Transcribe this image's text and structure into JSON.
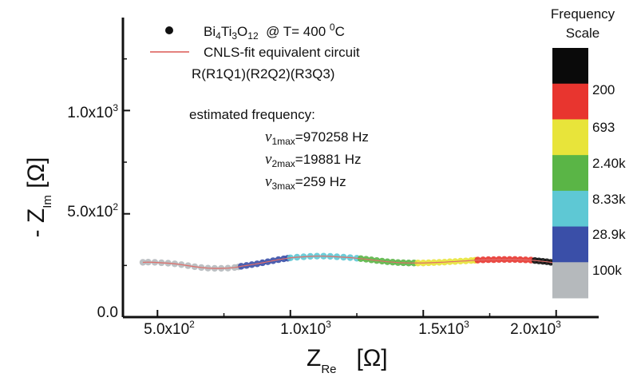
{
  "chart_data": {
    "type": "scatter",
    "xlabel_main": "Z",
    "xlabel_sub": "Re",
    "xlabel_unit": "[Ω]",
    "ylabel_main": "- Z",
    "ylabel_sub": "Im",
    "ylabel_unit": "[Ω]",
    "xlim": [
      370,
      2160
    ],
    "ylim": [
      0,
      1450
    ],
    "x_ticks": [
      {
        "value": 500,
        "mantissa": "5.0x10",
        "exp": "2"
      },
      {
        "value": 1000,
        "mantissa": "1.0x10",
        "exp": "3"
      },
      {
        "value": 1500,
        "mantissa": "1.5x10",
        "exp": "3"
      },
      {
        "value": 2000,
        "mantissa": "2.0x10",
        "exp": "3"
      }
    ],
    "y_ticks": [
      {
        "value": 0,
        "mantissa": "0.0",
        "exp": ""
      },
      {
        "value": 500,
        "mantissa": "5.0x10",
        "exp": "2"
      },
      {
        "value": 1000,
        "mantissa": "1.0x10",
        "exp": "3"
      }
    ],
    "legend": {
      "points": {
        "pre": "Bi",
        "s1": "4",
        "mid1": "Ti",
        "s2": "3",
        "mid2": "O",
        "s3": "12",
        "post": "  @ T= 400 ",
        "sup": "0",
        "post2": "C"
      },
      "fit": "CNLS-fit equivalent circuit",
      "circuit": "R(R1Q1)(R2Q2)(R3Q3)"
    },
    "annotation": {
      "title": "estimated frequency:",
      "rows": [
        {
          "symbol": "ν",
          "sub": "1max",
          "value": "=970258 Hz"
        },
        {
          "symbol": "ν",
          "sub": "2max",
          "value": "=19881 Hz"
        },
        {
          "symbol": "ν",
          "sub": "3max",
          "value": "=259 Hz"
        }
      ]
    },
    "fit_line_color": "#e0706c",
    "segments": [
      {
        "color": "#b5b9bc",
        "x": [
          445,
          465,
          490,
          515,
          540,
          565,
          590,
          615,
          640,
          665,
          690,
          715,
          740,
          765,
          790,
          805
        ],
        "y": [
          265,
          266,
          265,
          263,
          261,
          258,
          254,
          249,
          244,
          240,
          237,
          236,
          236,
          237,
          240,
          243
        ]
      },
      {
        "color": "#3a4fa8",
        "x": [
          815,
          835,
          855,
          875,
          895,
          915,
          935,
          955,
          975,
          990
        ],
        "y": [
          246,
          250,
          254,
          258,
          263,
          268,
          273,
          278,
          282,
          285
        ]
      },
      {
        "color": "#5ec8d4",
        "x": [
          1000,
          1025,
          1050,
          1075,
          1100,
          1125,
          1150,
          1175,
          1200,
          1225,
          1250
        ],
        "y": [
          287,
          290,
          292,
          294,
          295,
          295,
          294,
          292,
          290,
          288,
          285
        ]
      },
      {
        "color": "#5ab546",
        "x": [
          1265,
          1285,
          1305,
          1325,
          1345,
          1365,
          1385,
          1405,
          1425,
          1445,
          1465
        ],
        "y": [
          283,
          280,
          277,
          274,
          271,
          268,
          266,
          264,
          263,
          262,
          262
        ]
      },
      {
        "color": "#e8e43a",
        "x": [
          1480,
          1500,
          1520,
          1540,
          1560,
          1580,
          1600,
          1620,
          1640,
          1660,
          1680,
          1695
        ],
        "y": [
          262,
          262,
          263,
          264,
          265,
          266,
          268,
          269,
          271,
          272,
          274,
          275
        ]
      },
      {
        "color": "#e8352f",
        "x": [
          1705,
          1725,
          1745,
          1765,
          1785,
          1805,
          1825,
          1845,
          1865,
          1885,
          1905
        ],
        "y": [
          276,
          277,
          278,
          278,
          279,
          279,
          279,
          279,
          278,
          277,
          276
        ]
      },
      {
        "color": "#111111",
        "x": [
          1920,
          1935,
          1950,
          1965,
          1980,
          1995,
          2010,
          2025,
          2040,
          2055
        ],
        "y": [
          274,
          272,
          270,
          268,
          265,
          262,
          258,
          254,
          250,
          246
        ]
      }
    ]
  },
  "frequency_scale": {
    "title_line1": "Frequency",
    "title_line2": "Scale",
    "colors": [
      "#0a0a0a",
      "#e8352f",
      "#e8e43a",
      "#5ab546",
      "#5ec8d4",
      "#3a4fa8",
      "#b5b9bc"
    ],
    "labels": [
      "200",
      "693",
      "2.40k",
      "8.33k",
      "28.9k",
      "100k"
    ]
  }
}
